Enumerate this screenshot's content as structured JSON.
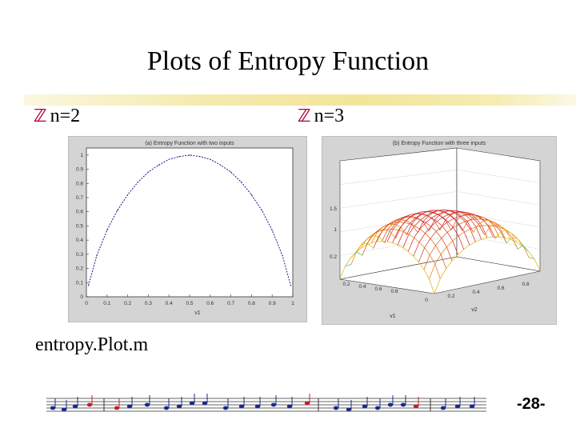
{
  "slide": {
    "title": "Plots of Entropy Function",
    "bullet_1": "n=2",
    "bullet_2": "n=3",
    "bullet_icon": "z-bullet-icon",
    "footer_label": "entropy.Plot.m",
    "page_number": "-28-"
  },
  "chart_data": [
    {
      "type": "line",
      "title": "(a) Entropy Function with two inputs",
      "xlabel": "v1",
      "ylabel": "",
      "x_ticks": [
        "0",
        "0.1",
        "0.2",
        "0.3",
        "0.4",
        "0.5",
        "0.6",
        "0.7",
        "0.8",
        "0.9",
        "1"
      ],
      "y_ticks": [
        "0",
        "0.1",
        "0.2",
        "0.3",
        "0.4",
        "0.5",
        "0.6",
        "0.7",
        "0.8",
        "0.9",
        "1"
      ],
      "xlim": [
        0,
        1
      ],
      "ylim": [
        0,
        1.05
      ],
      "x": [
        0.01,
        0.05,
        0.1,
        0.15,
        0.2,
        0.25,
        0.3,
        0.35,
        0.4,
        0.45,
        0.5,
        0.55,
        0.6,
        0.65,
        0.7,
        0.75,
        0.8,
        0.85,
        0.9,
        0.95,
        0.99
      ],
      "y": [
        0.08,
        0.29,
        0.47,
        0.61,
        0.72,
        0.81,
        0.88,
        0.93,
        0.97,
        0.99,
        1.0,
        0.99,
        0.97,
        0.93,
        0.88,
        0.81,
        0.72,
        0.61,
        0.47,
        0.29,
        0.08
      ],
      "grid": false
    },
    {
      "type": "surface",
      "title": "(b) Entropy Function with three inputs",
      "xlabel": "v1",
      "ylabel": "v2",
      "x_ticks": [
        "0.2",
        "0.4",
        "0.6",
        "0.8"
      ],
      "y_ticks": [
        "0",
        "0.2",
        "0.4",
        "0.6",
        "0.8"
      ],
      "z_ticks": [
        "0.2",
        "1",
        "1.5"
      ],
      "zlim": [
        0,
        1.6
      ],
      "grid": true
    }
  ]
}
